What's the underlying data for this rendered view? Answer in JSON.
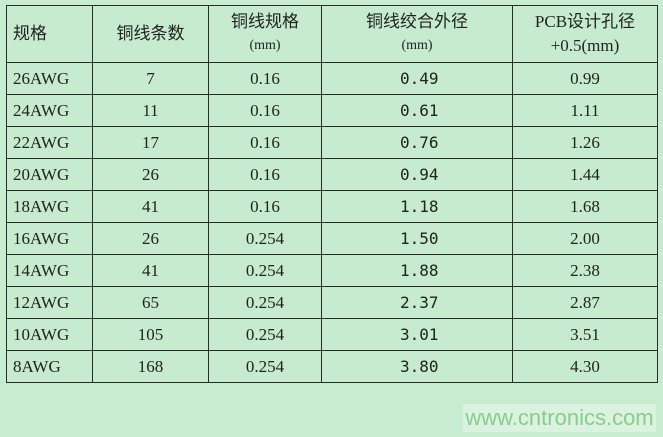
{
  "table": {
    "headers": [
      {
        "line1": "规格",
        "line2": ""
      },
      {
        "line1": "铜线条数",
        "line2": ""
      },
      {
        "line1": "铜线规格",
        "line2": "(mm)"
      },
      {
        "line1": "铜线绞合外径",
        "line2": "(mm)"
      },
      {
        "line1": "PCB设计孔径",
        "line2": "+0.5(mm)"
      }
    ],
    "rows": [
      [
        "26AWG",
        "7",
        "0.16",
        "0.49",
        "0.99"
      ],
      [
        "24AWG",
        "11",
        "0.16",
        "0.61",
        "1.11"
      ],
      [
        "22AWG",
        "17",
        "0.16",
        "0.76",
        "1.26"
      ],
      [
        "20AWG",
        "26",
        "0.16",
        "0.94",
        "1.44"
      ],
      [
        "18AWG",
        "41",
        "0.16",
        "1.18",
        "1.68"
      ],
      [
        "16AWG",
        "26",
        "0.254",
        "1.50",
        "2.00"
      ],
      [
        "14AWG",
        "41",
        "0.254",
        "1.88",
        "2.38"
      ],
      [
        "12AWG",
        "65",
        "0.254",
        "2.37",
        "2.87"
      ],
      [
        "10AWG",
        "105",
        "0.254",
        "3.01",
        "3.51"
      ],
      [
        "8AWG",
        "168",
        "0.254",
        "3.80",
        "4.30"
      ]
    ]
  },
  "watermark": "www.cntronics.com",
  "colors": {
    "background": "#c8ecd0",
    "border": "#2a2a2a"
  }
}
